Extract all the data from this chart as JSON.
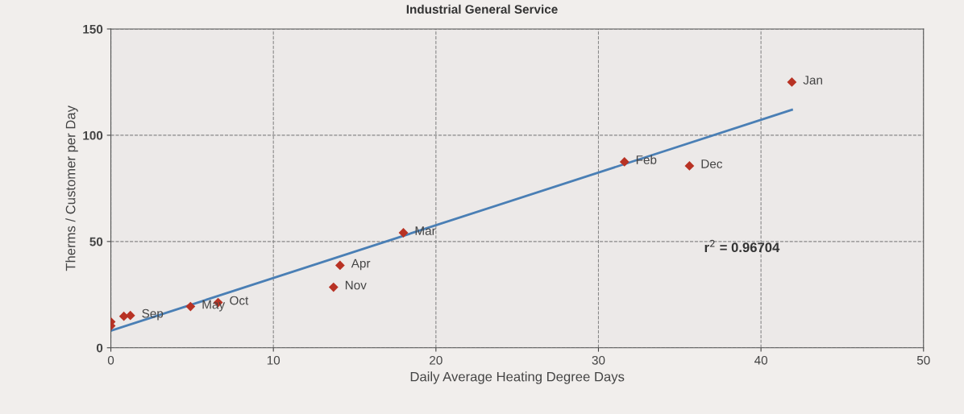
{
  "chart_data": {
    "type": "scatter",
    "title": "Industrial General Service",
    "xlabel": "Daily Average Heating Degree Days",
    "ylabel": "Therms / Customer per Day",
    "series": [
      {
        "color": "#b83224",
        "marker": "diamond",
        "x": [
          41.9,
          31.6,
          35.6,
          18.0,
          14.1,
          13.7,
          6.6,
          4.9,
          1.2,
          0.8,
          0,
          0
        ],
        "values": [
          125,
          87.5,
          85.6,
          54.1,
          38.8,
          28.5,
          21.3,
          19.4,
          15.2,
          14.8,
          12.2,
          10.3
        ]
      },
      {
        "type": "line",
        "color": "#4a7fb5",
        "marker": "none",
        "x": [
          0,
          41.9
        ],
        "values": [
          8.0,
          112
        ]
      }
    ],
    "annotations": [
      {
        "text": "Jan",
        "x": 41.9,
        "y": 125
      },
      {
        "text": "Feb",
        "x": 31.6,
        "y": 87.5
      },
      {
        "text": "Dec",
        "x": 35.6,
        "y": 85.6
      },
      {
        "text": "Mar",
        "x": 18.0,
        "y": 54.1
      },
      {
        "text": "Apr",
        "x": 14.1,
        "y": 38.8
      },
      {
        "text": "Nov",
        "x": 13.7,
        "y": 28.5
      },
      {
        "text": "Oct",
        "x": 6.6,
        "y": 21.3
      },
      {
        "text": "May",
        "x": 4.9,
        "y": 19.4
      },
      {
        "text": "Sep",
        "x": 1.2,
        "y": 15.2
      },
      "r$^{2}$ = 0.96704"
    ],
    "xlim": [
      0,
      50
    ],
    "xticks": [
      0,
      10,
      20,
      30,
      40,
      50
    ],
    "ylim": [
      0,
      150
    ],
    "yticks": [
      0,
      50,
      100,
      150
    ],
    "grid": true,
    "legend": false
  }
}
